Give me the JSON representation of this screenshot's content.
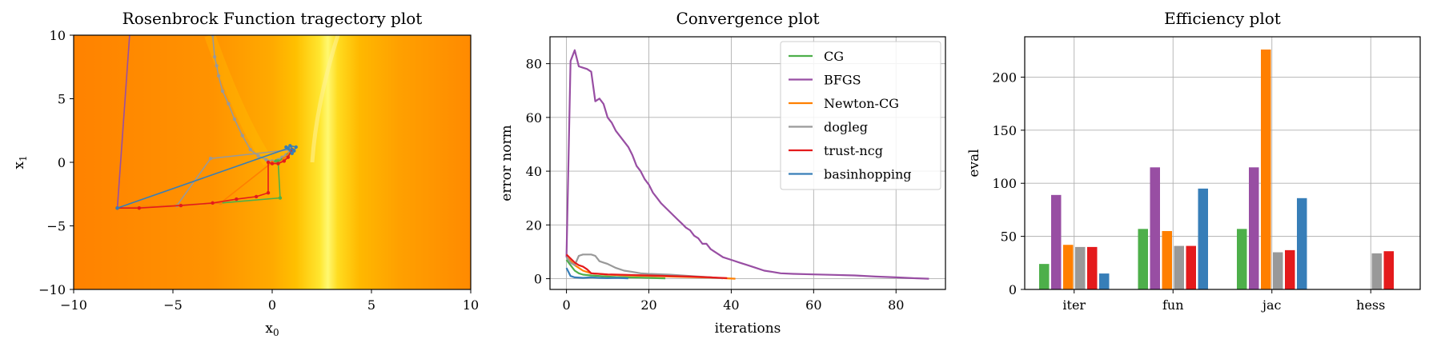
{
  "chart_data": [
    {
      "type": "line",
      "title": "Rosenbrock Function tragectory plot",
      "xlabel": "x",
      "xlabel_sub": "0",
      "ylabel": "x",
      "ylabel_sub": "1",
      "xlim": [
        -10,
        10
      ],
      "ylim": [
        -10,
        10
      ],
      "xticks": [
        -10,
        -5,
        0,
        5,
        10
      ],
      "yticks": [
        -10,
        -5,
        0,
        5,
        10
      ],
      "xtick_labels": [
        "−10",
        "−5",
        "0",
        "5",
        "10"
      ],
      "ytick_labels": [
        "−10",
        "−5",
        "0",
        "5",
        "10"
      ],
      "background": "Rosenbrock contour heatmap (orange to yellow valley)",
      "series": [
        {
          "color": "#984ea3",
          "x": [
            -7.0,
            -7.8
          ],
          "y": [
            14.0,
            -3.6
          ]
        },
        {
          "color": "#999999",
          "x": [
            -3.0,
            -2.9,
            -2.8,
            -2.7,
            -2.5,
            -2.2,
            -1.9,
            -1.5,
            -1.1,
            -0.7,
            -0.3,
            0.0,
            0.3,
            0.5,
            0.7,
            0.85,
            0.95,
            1.0,
            -3.1,
            -4.8,
            -7.8
          ],
          "y": [
            10.0,
            8.3,
            7.6,
            6.8,
            5.6,
            4.6,
            3.4,
            2.1,
            1.0,
            0.5,
            0.2,
            0.1,
            0.2,
            0.4,
            0.6,
            0.75,
            0.9,
            1.0,
            0.3,
            -3.4,
            -3.6
          ]
        },
        {
          "color": "#4daf4a",
          "x": [
            -7.8,
            -2.6,
            0.4,
            0.3,
            0.0,
            0.2,
            0.5,
            0.8,
            1.0
          ],
          "y": [
            -3.6,
            -3.2,
            -2.8,
            0.1,
            0.0,
            0.1,
            0.2,
            0.6,
            1.0
          ]
        },
        {
          "color": "#ff7f00",
          "x": [
            -7.8,
            -2.6,
            0.0,
            0.3,
            0.6,
            1.0
          ],
          "y": [
            -3.6,
            -3.2,
            0.0,
            -0.1,
            0.3,
            1.0
          ]
        },
        {
          "color": "#e41a1c",
          "x": [
            -7.8,
            -6.7,
            -4.6,
            -3.0,
            -1.8,
            -0.8,
            -0.2,
            -0.2,
            0.0,
            0.3,
            0.6,
            0.8,
            1.0
          ],
          "y": [
            -3.6,
            -3.6,
            -3.4,
            -3.2,
            -2.9,
            -2.7,
            -2.4,
            0.0,
            -0.1,
            -0.1,
            0.1,
            0.4,
            1.0
          ]
        },
        {
          "color": "#377eb8",
          "x": [
            -7.8,
            0.8,
            1.1,
            0.9,
            1.2,
            1.0,
            0.7
          ],
          "y": [
            -3.6,
            1.1,
            0.9,
            1.3,
            1.2,
            0.7,
            1.2
          ]
        }
      ]
    },
    {
      "type": "line",
      "title": "Convergence plot",
      "xlabel": "iterations",
      "ylabel": "error norm",
      "xlim": [
        -4,
        92
      ],
      "ylim": [
        -4,
        90
      ],
      "xticks": [
        0,
        20,
        40,
        60,
        80
      ],
      "yticks": [
        0,
        20,
        40,
        60,
        80
      ],
      "grid": true,
      "legend_position": "top-right",
      "series": [
        {
          "name": "CG",
          "color": "#4daf4a",
          "x": [
            0,
            1,
            2,
            3,
            4,
            6,
            8,
            10,
            12,
            15,
            18,
            20,
            22,
            24
          ],
          "y": [
            7,
            5,
            3,
            2,
            1.5,
            1.2,
            1,
            0.8,
            0.6,
            0.5,
            0.4,
            0.3,
            0.2,
            0.1
          ]
        },
        {
          "name": "BFGS",
          "color": "#984ea3",
          "x": [
            0,
            1,
            2,
            3,
            4,
            5,
            6,
            7,
            8,
            9,
            10,
            11,
            12,
            13,
            14,
            15,
            16,
            17,
            18,
            19,
            20,
            21,
            22,
            23,
            24,
            25,
            26,
            27,
            28,
            29,
            30,
            31,
            32,
            33,
            34,
            35,
            36,
            37,
            38,
            40,
            42,
            44,
            46,
            48,
            50,
            52,
            55,
            60,
            65,
            70,
            75,
            80,
            84,
            88
          ],
          "y": [
            8,
            81,
            85,
            79,
            78.5,
            78,
            77,
            66,
            67,
            65,
            60,
            58,
            55,
            53,
            51,
            49,
            46,
            42,
            40,
            37,
            35,
            32,
            30,
            28,
            26.5,
            25,
            23.5,
            22,
            20.5,
            19,
            18,
            16,
            15,
            13,
            13,
            11,
            10,
            9,
            8,
            7,
            6,
            5,
            4,
            3,
            2.5,
            2,
            1.8,
            1.6,
            1.4,
            1.2,
            0.8,
            0.5,
            0.2,
            0
          ]
        },
        {
          "name": "Newton-CG",
          "color": "#ff7f00",
          "x": [
            0,
            2,
            4,
            6,
            10,
            15,
            20,
            25,
            30,
            35,
            38,
            41
          ],
          "y": [
            8,
            5,
            3,
            2,
            1.5,
            1.2,
            1.0,
            0.8,
            0.6,
            0.4,
            0.2,
            0
          ]
        },
        {
          "name": "dogleg",
          "color": "#999999",
          "x": [
            0,
            1,
            2,
            3,
            4,
            5,
            6,
            7,
            8,
            9,
            10,
            12,
            14,
            16,
            18,
            20,
            25,
            30,
            35,
            38
          ],
          "y": [
            8,
            6,
            5,
            8.5,
            9,
            9,
            9,
            8.5,
            6.5,
            6,
            5.5,
            4,
            3,
            2.5,
            2,
            1.8,
            1.5,
            1,
            0.5,
            0.1
          ]
        },
        {
          "name": "trust-ncg",
          "color": "#e41a1c",
          "x": [
            0,
            1,
            2,
            3,
            4,
            5,
            6,
            8,
            10,
            15,
            20,
            25,
            30,
            35,
            39
          ],
          "y": [
            9,
            7.5,
            6,
            5,
            4.5,
            3.5,
            2,
            1.8,
            1.6,
            1.4,
            1.2,
            1,
            0.8,
            0.5,
            0.2
          ]
        },
        {
          "name": "basinhopping",
          "color": "#377eb8",
          "x": [
            0,
            1,
            2,
            4,
            6,
            8,
            10,
            12,
            15
          ],
          "y": [
            4,
            1,
            0.5,
            0.3,
            0.5,
            0.3,
            0.2,
            0.3,
            0.1
          ]
        }
      ]
    },
    {
      "type": "bar",
      "title": "Efficiency plot",
      "xlabel": "",
      "ylabel": "eval",
      "categories": [
        "iter",
        "fun",
        "jac",
        "hess"
      ],
      "ylim": [
        0,
        238
      ],
      "yticks": [
        0,
        50,
        100,
        150,
        200
      ],
      "grid": true,
      "series": [
        {
          "name": "CG",
          "color": "#4daf4a",
          "values": [
            24,
            57,
            57,
            0
          ]
        },
        {
          "name": "BFGS",
          "color": "#984ea3",
          "values": [
            89,
            115,
            115,
            0
          ]
        },
        {
          "name": "Newton-CG",
          "color": "#ff7f00",
          "values": [
            42,
            55,
            226,
            0
          ]
        },
        {
          "name": "dogleg",
          "color": "#999999",
          "values": [
            40,
            41,
            35,
            34
          ]
        },
        {
          "name": "trust-ncg",
          "color": "#e41a1c",
          "values": [
            40,
            41,
            37,
            36
          ]
        },
        {
          "name": "basinhopping",
          "color": "#377eb8",
          "values": [
            15,
            95,
            86,
            0
          ]
        }
      ]
    }
  ]
}
